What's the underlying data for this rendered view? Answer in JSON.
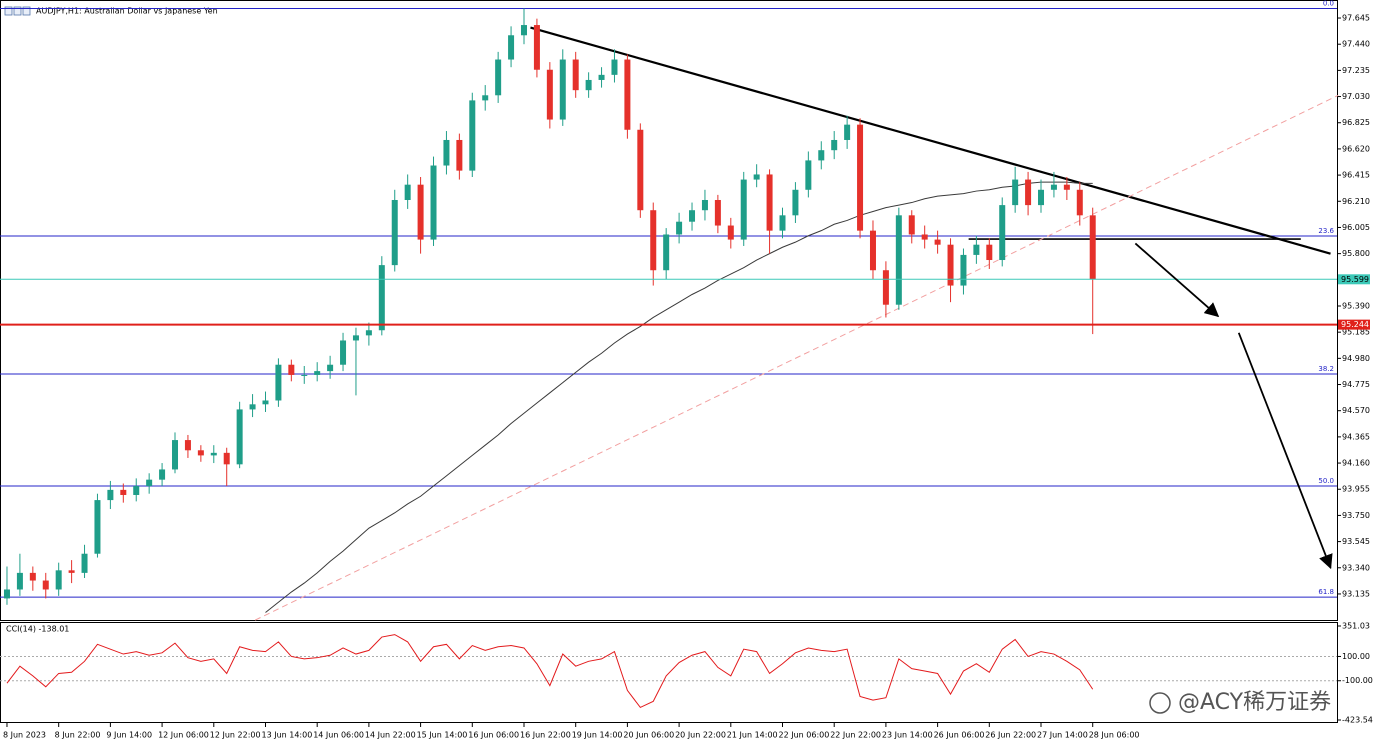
{
  "chart_data": [
    {
      "type": "candlestick",
      "title": "AUDJPY,H1:  Australian Dollar vs Japanese Yen",
      "xlim": [
        -0.54,
        102.9
      ],
      "xticks": [
        {
          "value": 0,
          "label": "8 Jun 2023"
        },
        {
          "value": 4,
          "label": "8 Jun 22:00"
        },
        {
          "value": 8,
          "label": "9 Jun 14:00"
        },
        {
          "value": 12,
          "label": "12 Jun 06:00"
        },
        {
          "value": 16,
          "label": "12 Jun 22:00"
        },
        {
          "value": 20,
          "label": "13 Jun 14:00"
        },
        {
          "value": 24,
          "label": "14 Jun 06:00"
        },
        {
          "value": 28,
          "label": "14 Jun 22:00"
        },
        {
          "value": 32,
          "label": "15 Jun 14:00"
        },
        {
          "value": 36,
          "label": "16 Jun 06:00"
        },
        {
          "value": 40,
          "label": "16 Jun 22:00"
        },
        {
          "value": 44,
          "label": "19 Jun 14:00"
        },
        {
          "value": 48,
          "label": "20 Jun 06:00"
        },
        {
          "value": 52,
          "label": "20 Jun 22:00"
        },
        {
          "value": 56,
          "label": "21 Jun 14:00"
        },
        {
          "value": 60,
          "label": "22 Jun 06:00"
        },
        {
          "value": 64,
          "label": "22 Jun 22:00"
        },
        {
          "value": 68,
          "label": "23 Jun 14:00"
        },
        {
          "value": 72,
          "label": "26 Jun 06:00"
        },
        {
          "value": 76,
          "label": "26 Jun 22:00"
        },
        {
          "value": 80,
          "label": "27 Jun 14:00"
        },
        {
          "value": 84,
          "label": "28 Jun 06:00"
        }
      ],
      "ylim": [
        92.931,
        97.747
      ],
      "yticks": [
        97.645,
        {
          "value": 97.44,
          "label": "97.440"
        },
        97.235,
        {
          "value": 97.03,
          "label": "97.030"
        },
        96.825,
        {
          "value": 96.62,
          "label": "96.620"
        },
        96.415,
        {
          "value": 96.21,
          "label": "96.210"
        },
        96.005,
        {
          "value": 95.8,
          "label": "95.800"
        },
        95.595,
        {
          "value": 95.39,
          "label": "95.390"
        },
        95.185,
        {
          "value": 94.98,
          "label": "94.980"
        },
        94.775,
        {
          "value": 94.57,
          "label": "94.570"
        },
        94.365,
        {
          "value": 94.16,
          "label": "94.160"
        },
        93.955,
        {
          "value": 93.75,
          "label": "93.750"
        },
        93.545,
        {
          "value": 93.34,
          "label": "93.340"
        },
        93.135
      ],
      "colors": {
        "up": "#1f9e89",
        "down": "#e5312b"
      },
      "ohlc": [
        [
          93.1,
          93.35,
          93.05,
          93.17
        ],
        [
          93.17,
          93.45,
          93.12,
          93.3
        ],
        [
          93.3,
          93.35,
          93.16,
          93.24
        ],
        [
          93.24,
          93.3,
          93.1,
          93.17
        ],
        [
          93.17,
          93.38,
          93.12,
          93.32
        ],
        [
          93.32,
          93.4,
          93.22,
          93.3
        ],
        [
          93.3,
          93.52,
          93.26,
          93.45
        ],
        [
          93.45,
          93.92,
          93.42,
          93.87
        ],
        [
          93.87,
          94.02,
          93.8,
          93.95
        ],
        [
          93.95,
          94.0,
          93.85,
          93.91
        ],
        [
          93.91,
          94.04,
          93.86,
          93.98
        ],
        [
          93.98,
          94.08,
          93.92,
          94.03
        ],
        [
          94.03,
          94.16,
          93.98,
          94.11
        ],
        [
          94.11,
          94.4,
          94.08,
          94.34
        ],
        [
          94.34,
          94.38,
          94.2,
          94.26
        ],
        [
          94.26,
          94.3,
          94.17,
          94.22
        ],
        [
          94.22,
          94.3,
          94.16,
          94.24
        ],
        [
          94.24,
          94.28,
          93.98,
          94.15
        ],
        [
          94.15,
          94.64,
          94.12,
          94.58
        ],
        [
          94.58,
          94.7,
          94.52,
          94.62
        ],
        [
          94.62,
          94.72,
          94.56,
          94.65
        ],
        [
          94.65,
          94.98,
          94.6,
          94.93
        ],
        [
          94.93,
          94.97,
          94.8,
          94.85
        ],
        [
          94.85,
          94.92,
          94.78,
          94.85
        ],
        [
          94.85,
          94.95,
          94.8,
          94.88
        ],
        [
          94.88,
          95.0,
          94.82,
          94.93
        ],
        [
          94.93,
          95.18,
          94.88,
          95.12
        ],
        [
          95.12,
          95.22,
          94.69,
          95.16
        ],
        [
          95.16,
          95.26,
          95.08,
          95.2
        ],
        [
          95.2,
          95.78,
          95.16,
          95.71
        ],
        [
          95.71,
          96.3,
          95.66,
          96.22
        ],
        [
          96.22,
          96.42,
          96.15,
          96.34
        ],
        [
          96.34,
          96.4,
          95.8,
          95.91
        ],
        [
          95.91,
          96.56,
          95.86,
          96.49
        ],
        [
          96.49,
          96.76,
          96.42,
          96.69
        ],
        [
          96.69,
          96.74,
          96.38,
          96.45
        ],
        [
          96.45,
          97.06,
          96.4,
          97.0
        ],
        [
          97.0,
          97.12,
          96.92,
          97.04
        ],
        [
          97.04,
          97.38,
          96.98,
          97.32
        ],
        [
          97.32,
          97.58,
          97.26,
          97.51
        ],
        [
          97.51,
          97.72,
          97.44,
          97.59
        ],
        [
          97.59,
          97.64,
          97.18,
          97.24
        ],
        [
          97.24,
          97.3,
          96.78,
          96.85
        ],
        [
          96.85,
          97.4,
          96.8,
          97.32
        ],
        [
          97.32,
          97.38,
          97.02,
          97.08
        ],
        [
          97.08,
          97.22,
          97.02,
          97.16
        ],
        [
          97.16,
          97.26,
          97.1,
          97.2
        ],
        [
          97.2,
          97.4,
          97.14,
          97.32
        ],
        [
          97.32,
          97.36,
          96.7,
          96.77
        ],
        [
          96.77,
          96.82,
          96.08,
          96.14
        ],
        [
          96.14,
          96.2,
          95.55,
          95.67
        ],
        [
          95.67,
          96.0,
          95.6,
          95.95
        ],
        [
          95.95,
          96.12,
          95.88,
          96.05
        ],
        [
          96.05,
          96.2,
          95.98,
          96.14
        ],
        [
          96.14,
          96.3,
          96.06,
          96.22
        ],
        [
          96.22,
          96.26,
          95.96,
          96.02
        ],
        [
          96.02,
          96.08,
          95.84,
          95.91
        ],
        [
          95.91,
          96.44,
          95.86,
          96.38
        ],
        [
          96.38,
          96.5,
          96.32,
          96.42
        ],
        [
          96.42,
          96.46,
          95.8,
          95.98
        ],
        [
          95.98,
          96.16,
          95.92,
          96.1
        ],
        [
          96.1,
          96.36,
          96.04,
          96.3
        ],
        [
          96.3,
          96.6,
          96.24,
          96.53
        ],
        [
          96.53,
          96.68,
          96.46,
          96.61
        ],
        [
          96.61,
          96.76,
          96.54,
          96.69
        ],
        [
          96.69,
          96.88,
          96.62,
          96.81
        ],
        [
          96.81,
          96.86,
          95.92,
          95.98
        ],
        [
          95.98,
          96.06,
          95.6,
          95.67
        ],
        [
          95.67,
          95.74,
          95.3,
          95.4
        ],
        [
          95.4,
          96.16,
          95.36,
          96.1
        ],
        [
          96.1,
          96.14,
          95.88,
          95.95
        ],
        [
          95.95,
          96.02,
          95.84,
          95.91
        ],
        [
          95.91,
          95.98,
          95.8,
          95.87
        ],
        [
          95.87,
          95.92,
          95.42,
          95.55
        ],
        [
          95.55,
          95.84,
          95.48,
          95.79
        ],
        [
          95.79,
          95.94,
          95.72,
          95.87
        ],
        [
          95.87,
          95.92,
          95.68,
          95.75
        ],
        [
          95.75,
          96.24,
          95.7,
          96.18
        ],
        [
          96.18,
          96.48,
          96.12,
          96.38
        ],
        [
          96.38,
          96.44,
          96.1,
          96.18
        ],
        [
          96.18,
          96.38,
          96.12,
          96.3
        ],
        [
          96.3,
          96.44,
          96.24,
          96.34
        ],
        [
          96.34,
          96.4,
          96.22,
          96.3
        ],
        [
          96.3,
          96.36,
          96.02,
          96.1
        ],
        [
          96.1,
          96.16,
          95.17,
          95.599
        ]
      ],
      "ma": {
        "color": "#3a3a3a",
        "values": [
          null,
          null,
          null,
          null,
          null,
          null,
          null,
          null,
          null,
          null,
          null,
          null,
          null,
          null,
          null,
          null,
          null,
          null,
          null,
          null,
          92.99,
          93.07,
          93.15,
          93.22,
          93.3,
          93.39,
          93.47,
          93.56,
          93.65,
          93.71,
          93.77,
          93.84,
          93.9,
          93.98,
          94.06,
          94.14,
          94.22,
          94.3,
          94.38,
          94.47,
          94.55,
          94.63,
          94.71,
          94.79,
          94.87,
          94.95,
          95.02,
          95.1,
          95.17,
          95.23,
          95.3,
          95.36,
          95.42,
          95.48,
          95.53,
          95.59,
          95.64,
          95.69,
          95.75,
          95.8,
          95.85,
          95.89,
          95.94,
          95.98,
          96.03,
          96.06,
          96.1,
          96.13,
          96.16,
          96.18,
          96.2,
          96.23,
          96.25,
          96.26,
          96.27,
          96.29,
          96.3,
          96.32,
          96.33,
          96.35,
          96.36,
          96.36,
          96.36,
          96.35,
          96.35
        ]
      },
      "fib_color": "#2424c8",
      "fib_levels": [
        {
          "label": "0.0",
          "value": 97.72
        },
        {
          "label": "23.6",
          "value": 95.938
        },
        {
          "label": "38.2",
          "value": 94.857
        },
        {
          "label": "50.0",
          "value": 93.98
        },
        {
          "label": "61.8",
          "value": 93.11
        }
      ],
      "price_lines": [
        {
          "value": 95.599,
          "color": "#3cc9b8"
        },
        {
          "value": 95.244,
          "color": "#e0201b"
        }
      ],
      "trendlines": [
        {
          "x": [
            40.5,
            102.4
          ],
          "y": [
            97.57,
            95.8
          ],
          "color": "#000000",
          "width": 2.2
        },
        {
          "x": [
            74.4,
            100.1
          ],
          "y": [
            95.914,
            95.914
          ],
          "color": "#000000",
          "width": 1.6
        },
        {
          "x": [
            19.2,
            103
          ],
          "y": [
            92.93,
            97.04
          ],
          "color": "#f2a0a0",
          "width": 1,
          "dashed": true
        }
      ],
      "arrows": [
        {
          "x": [
            87.3,
            93.7
          ],
          "y": [
            95.88,
            95.31
          ],
          "color": "#000000"
        },
        {
          "x": [
            95.3,
            102.4
          ],
          "y": [
            95.18,
            93.34
          ],
          "color": "#000000"
        }
      ]
    },
    {
      "type": "line",
      "label": "CCI(14) -138.01",
      "color": "#e31a1c",
      "ylim": [
        -423.54,
        351.03
      ],
      "yticks": [
        351.03,
        {
          "value": 100,
          "label": "100.00"
        },
        {
          "value": -100,
          "label": "-100.00"
        },
        -423.54
      ],
      "levels": [
        100,
        -100
      ],
      "values": [
        -120,
        20,
        -60,
        -150,
        -40,
        -30,
        60,
        200,
        160,
        120,
        140,
        110,
        130,
        210,
        90,
        60,
        80,
        -40,
        180,
        150,
        140,
        220,
        100,
        80,
        90,
        110,
        170,
        120,
        150,
        260,
        280,
        220,
        60,
        180,
        200,
        80,
        190,
        150,
        180,
        190,
        170,
        40,
        -140,
        120,
        20,
        60,
        80,
        140,
        -180,
        -320,
        -270,
        -60,
        50,
        110,
        140,
        10,
        -60,
        160,
        140,
        -40,
        40,
        130,
        170,
        150,
        140,
        160,
        -230,
        -260,
        -240,
        80,
        0,
        -20,
        -40,
        -210,
        -20,
        40,
        -30,
        160,
        240,
        100,
        140,
        120,
        60,
        -10,
        -170
      ]
    }
  ],
  "watermark": "@ACY稀万证券"
}
